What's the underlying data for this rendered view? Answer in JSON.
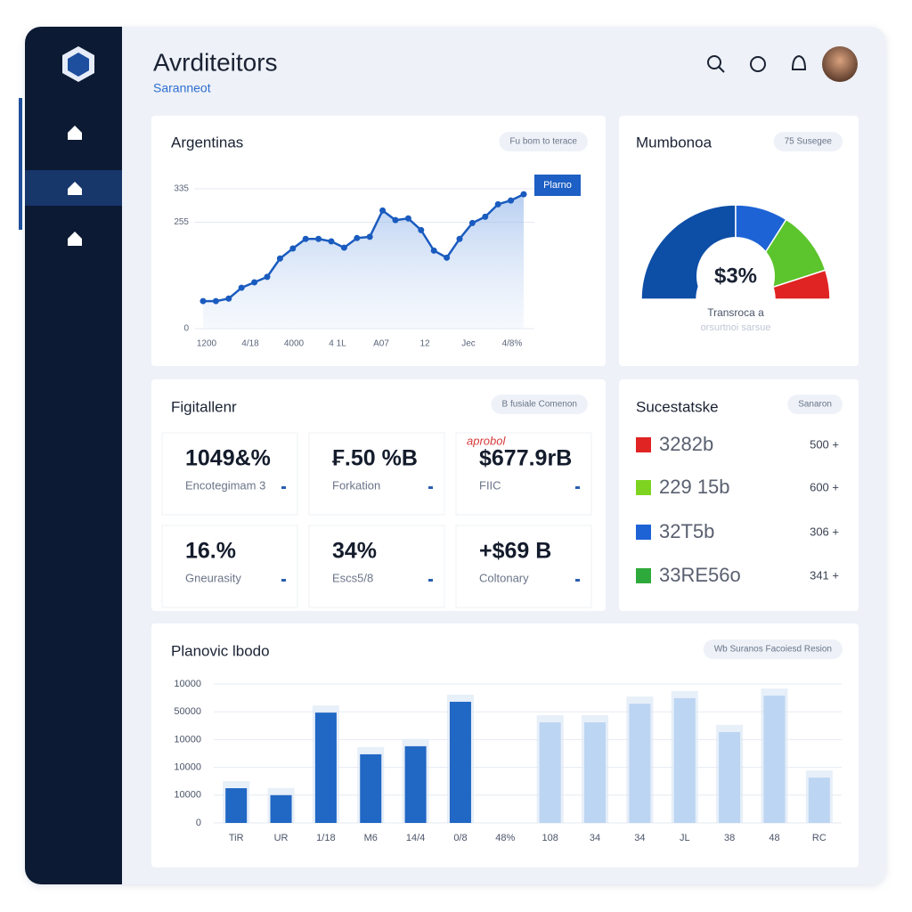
{
  "header": {
    "title": "Avrditeitors",
    "subtitle": "Saranneot"
  },
  "line_card": {
    "type": "line",
    "title": "Argentinas",
    "badge": "Fu bom to terace",
    "legend": "Plarno",
    "color": "#1a5bbf",
    "categories": [
      "1200",
      "4/18",
      "4000",
      "4 1L",
      "A07",
      "12",
      "Jec",
      "4/8%"
    ],
    "values": [
      66,
      66,
      72,
      98,
      111,
      124,
      168,
      192,
      215,
      215,
      209,
      194,
      217,
      220,
      283,
      260,
      264,
      236,
      187,
      170,
      215,
      253,
      268,
      298,
      307,
      322
    ],
    "ylim": [
      0,
      335
    ],
    "yticks": [
      0,
      255,
      335
    ],
    "grid": true
  },
  "gauge_card": {
    "type": "pie",
    "title": "Mumbonoa",
    "badge": "75 Susegee",
    "center_label": "$3%",
    "label": "Transroca a",
    "sublabel": "orsurtnoi sarsue",
    "values": [
      50,
      18,
      22,
      10
    ],
    "colors": [
      "#0d4ea6",
      "#1d63d6",
      "#5cc42c",
      "#e02424"
    ]
  },
  "kpi_card": {
    "title": "Figitallenr",
    "badge": "B fusiale Comenon",
    "tiles": [
      {
        "value": "1049&%",
        "label": "Encotegimam 3"
      },
      {
        "value": "₣.50 %B",
        "label": "Forkation"
      },
      {
        "value": "$677.9rB",
        "label": "FIIC",
        "note": "aprobol"
      },
      {
        "value": "16.%",
        "label": "Gneurasity"
      },
      {
        "value": "34%",
        "label": "Escs5/8"
      },
      {
        "value": "+$69 B",
        "label": "Coltonary"
      }
    ]
  },
  "list_card": {
    "title": "Sucestatske",
    "badge": "Sanaron",
    "items": [
      {
        "color": "#e02424",
        "label": "3282b",
        "value": "500 +"
      },
      {
        "color": "#7ed321",
        "label": "229 15b",
        "value": "600 +"
      },
      {
        "color": "#1d63d6",
        "label": "32T5b",
        "value": "306 +"
      },
      {
        "color": "#2eaa3c",
        "label": "33RE56o",
        "value": "341 +"
      }
    ]
  },
  "bar_card": {
    "type": "bar",
    "title": "Planovic lbodo",
    "badge": "Wb Suranos Facoiesd Resion",
    "categories": [
      "TiR",
      "UR",
      "1/18",
      "M6",
      "14/4",
      "0/8",
      "48%",
      "108",
      "34",
      "34",
      "JL",
      "38",
      "48",
      "RC"
    ],
    "series": [
      {
        "color": "#2167c4",
        "values": [
          1.25,
          1.0,
          3.97,
          2.47,
          2.76,
          4.36,
          null,
          null,
          null,
          null,
          null,
          null,
          null,
          null
        ]
      },
      {
        "color": "#bcd5f2",
        "values": [
          null,
          null,
          null,
          null,
          null,
          null,
          null,
          3.62,
          3.62,
          4.29,
          4.49,
          3.27,
          4.58,
          1.63
        ]
      }
    ],
    "ylim": [
      0,
      5
    ],
    "yticks": [
      0,
      {
        "value": 1,
        "label": "10000"
      },
      {
        "value": 2,
        "label": "10000"
      },
      {
        "value": 3,
        "label": "10000"
      },
      {
        "value": 4,
        "label": "50000"
      },
      {
        "value": 5,
        "label": "10000"
      }
    ],
    "grid": true
  }
}
